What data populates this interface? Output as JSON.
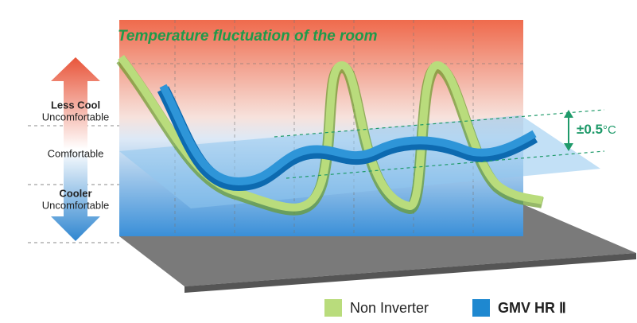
{
  "title": "Temperature fluctuation of the room",
  "zones": [
    {
      "label": "Less Cool",
      "sublabel": "Uncomfortable"
    },
    {
      "label": "Comfortable"
    },
    {
      "label": "Cooler",
      "sublabel": "Uncomfortable"
    }
  ],
  "annotation": {
    "value": "±0.5",
    "unit": "°C"
  },
  "legend": [
    {
      "label": "Non Inverter"
    },
    {
      "label": "GMV HR Ⅱ"
    }
  ]
}
